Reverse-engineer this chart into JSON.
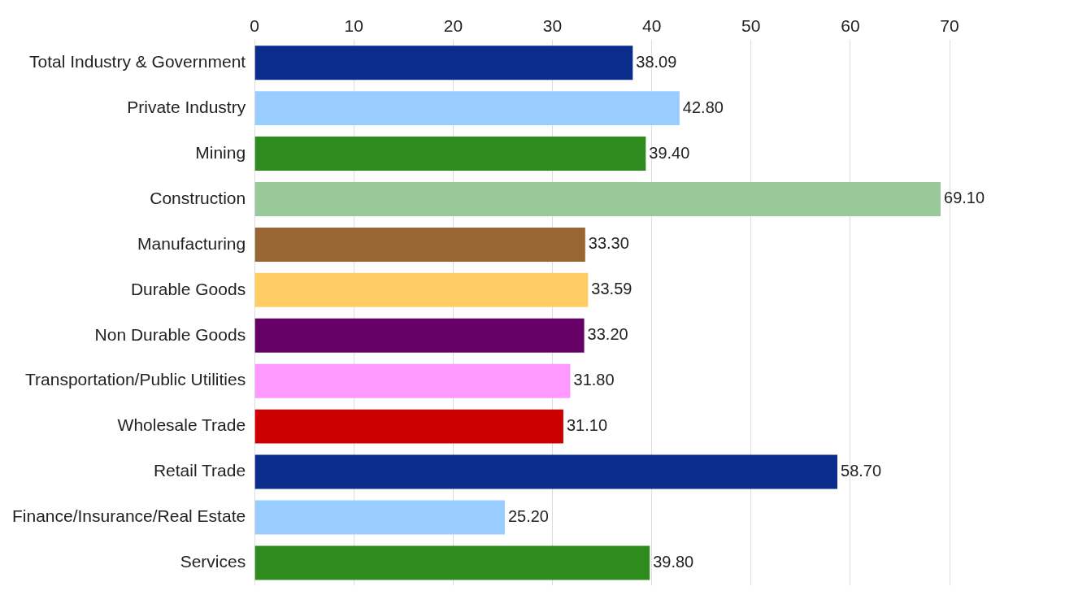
{
  "chart_data": {
    "type": "bar",
    "orientation": "horizontal",
    "categories": [
      "Total Industry & Government",
      "Private Industry",
      "Mining",
      "Construction",
      "Manufacturing",
      "Durable Goods",
      "Non Durable Goods",
      "Transportation/Public Utilities",
      "Wholesale Trade",
      "Retail Trade",
      "Finance/Insurance/Real Estate",
      "Services"
    ],
    "values": [
      38.09,
      42.8,
      39.4,
      69.1,
      33.3,
      33.59,
      33.2,
      31.8,
      31.1,
      58.7,
      25.2,
      39.8
    ],
    "value_labels": [
      "38.09",
      "42.80",
      "39.40",
      "69.10",
      "33.30",
      "33.59",
      "33.20",
      "31.80",
      "31.10",
      "58.70",
      "25.20",
      "39.80"
    ],
    "colors": [
      "#0a2d8c",
      "#99ccff",
      "#2e8b1e",
      "#99c899",
      "#996633",
      "#ffcc66",
      "#660066",
      "#ff99ff",
      "#cc0000",
      "#0a2d8c",
      "#99ccff",
      "#2e8b1e"
    ],
    "xlim": [
      0,
      70
    ],
    "xticks": [
      0,
      10,
      20,
      30,
      40,
      50,
      60,
      70
    ],
    "grid": "x",
    "legend": false
  }
}
